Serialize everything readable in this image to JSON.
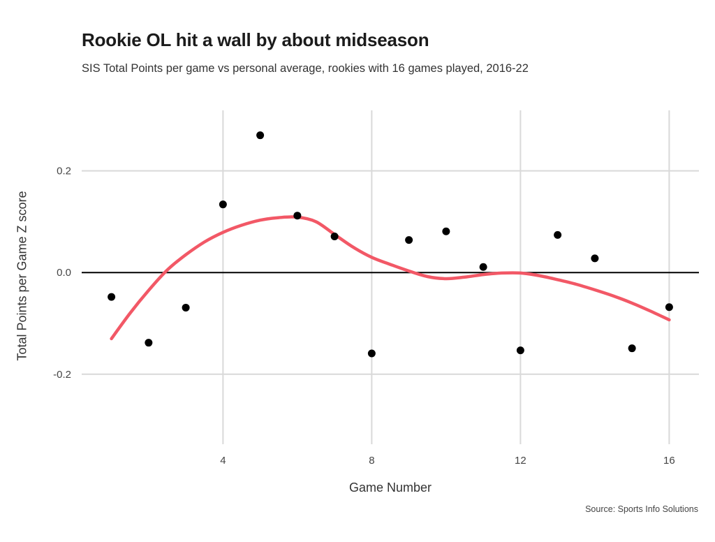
{
  "chart_data": {
    "type": "scatter",
    "title": "Rookie OL hit a wall by about midseason",
    "subtitle": "SIS Total Points per game vs personal average, rookies with 16 games played, 2016-22",
    "xlabel": "Game Number",
    "ylabel": "Total Points per Game Z score",
    "source": "Source: Sports Info Solutions",
    "xlim": [
      0.2,
      16.8
    ],
    "ylim": [
      -0.35,
      0.33
    ],
    "xticks": [
      4,
      8,
      12,
      16
    ],
    "xtick_labels": [
      "4",
      "8",
      "12",
      "16"
    ],
    "yticks": [
      0.2,
      0.0,
      -0.2
    ],
    "ytick_labels": [
      "0.2",
      "0.0",
      "-0.2"
    ],
    "grid": true,
    "reference_line_y": 0,
    "colors": {
      "points": "#000000",
      "trend": "#f25866",
      "grid": "#d9d9d9",
      "zero_line": "#000000"
    },
    "points": {
      "x": [
        1,
        2,
        3,
        4,
        5,
        6,
        7,
        8,
        9,
        10,
        11,
        12,
        13,
        14,
        15,
        16
      ],
      "y": [
        -0.048,
        -0.138,
        -0.069,
        0.134,
        0.27,
        0.112,
        0.071,
        -0.159,
        0.064,
        0.081,
        0.011,
        -0.153,
        0.074,
        0.028,
        -0.149,
        -0.068
      ]
    },
    "trend": {
      "x": [
        1,
        1.5,
        2,
        2.5,
        3,
        3.5,
        4,
        4.5,
        5,
        5.5,
        6,
        6.5,
        7,
        7.5,
        8,
        8.5,
        9,
        9.5,
        10,
        10.5,
        11,
        11.5,
        12,
        12.5,
        13,
        13.5,
        14,
        14.5,
        15,
        15.5,
        16
      ],
      "y": [
        -0.13,
        -0.08,
        -0.035,
        0.005,
        0.035,
        0.06,
        0.079,
        0.093,
        0.103,
        0.108,
        0.109,
        0.1,
        0.075,
        0.05,
        0.03,
        0.016,
        0.003,
        -0.008,
        -0.012,
        -0.009,
        -0.004,
        -0.001,
        -0.001,
        -0.006,
        -0.014,
        -0.023,
        -0.034,
        -0.046,
        -0.06,
        -0.076,
        -0.093
      ]
    }
  }
}
